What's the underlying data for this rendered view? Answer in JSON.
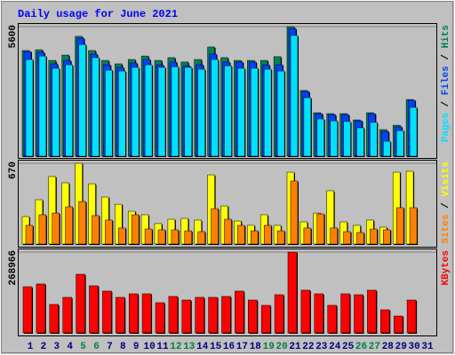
{
  "chart_data": [
    {
      "type": "bar",
      "title": "Daily usage for June 2021",
      "ylim": [
        0,
        5600
      ],
      "yticks": [
        5600
      ],
      "legend_separator": " / ",
      "series": [
        {
          "name": "Hits",
          "color": "#00805c",
          "values": [
            4565,
            4600,
            4140,
            4370,
            5180,
            4565,
            4140,
            3990,
            4180,
            4330,
            4140,
            4260,
            4070,
            4180,
            4720,
            4260,
            4140,
            4140,
            4140,
            4300,
            5600,
            2840,
            1880,
            1840,
            1840,
            1570,
            1880,
            1150,
            1340,
            2450,
            null
          ]
        },
        {
          "name": "Files",
          "color": "#0040ff",
          "values": [
            4525,
            4490,
            3990,
            4140,
            5100,
            4410,
            3950,
            3840,
            4030,
            4180,
            3950,
            4070,
            3910,
            3950,
            4410,
            4070,
            4070,
            4070,
            3950,
            3950,
            5520,
            2800,
            1840,
            1800,
            1800,
            1530,
            1840,
            1070,
            1270,
            2420,
            null
          ]
        },
        {
          "name": "Pages",
          "color": "#00e0ff",
          "values": [
            4180,
            4330,
            3800,
            3950,
            4830,
            4260,
            3720,
            3680,
            3840,
            3950,
            3840,
            3870,
            3840,
            3760,
            4180,
            3910,
            3800,
            3800,
            3760,
            3680,
            5220,
            2530,
            1610,
            1530,
            1500,
            1230,
            1460,
            650,
            1110,
            2110,
            null
          ]
        }
      ]
    },
    {
      "type": "bar",
      "ylim": [
        0,
        670
      ],
      "yticks": [
        670
      ],
      "legend_separator": " / ",
      "series": [
        {
          "name": "Visits",
          "color": "#ffff00",
          "values": [
            228,
            368,
            560,
            508,
            670,
            500,
            390,
            330,
            272,
            243,
            170,
            206,
            213,
            199,
            574,
            316,
            191,
            155,
            243,
            155,
            596,
            184,
            257,
            442,
            184,
            155,
            199,
            140,
            596,
            604,
            null
          ]
        },
        {
          "name": "Sites",
          "color": "#ff8000",
          "values": [
            155,
            243,
            257,
            309,
            353,
            236,
            199,
            133,
            243,
            125,
            118,
            118,
            110,
            103,
            294,
            206,
            155,
            110,
            155,
            110,
            523,
            133,
            250,
            133,
            103,
            96,
            125,
            118,
            302,
            302,
            null
          ]
        }
      ]
    },
    {
      "type": "bar",
      "ylim": [
        0,
        268966
      ],
      "yticks": [
        268966
      ],
      "categories": [
        "1",
        "2",
        "3",
        "4",
        "5",
        "6",
        "7",
        "8",
        "9",
        "10",
        "11",
        "12",
        "13",
        "14",
        "15",
        "16",
        "17",
        "18",
        "19",
        "20",
        "21",
        "22",
        "23",
        "24",
        "25",
        "26",
        "27",
        "28",
        "29",
        "30",
        "31"
      ],
      "category_colors": [
        "#000080",
        "#000080",
        "#000080",
        "#000080",
        "#008040",
        "#008040",
        "#000080",
        "#000080",
        "#000080",
        "#000080",
        "#000080",
        "#008040",
        "#008040",
        "#000080",
        "#000080",
        "#000080",
        "#000080",
        "#000080",
        "#008040",
        "#008040",
        "#000080",
        "#000080",
        "#000080",
        "#000080",
        "#000080",
        "#008040",
        "#008040",
        "#000080",
        "#000080",
        "#000080",
        "#000080"
      ],
      "series": [
        {
          "name": "KBytes",
          "color": "#ff0000",
          "values": [
            153700,
            162600,
            94600,
            118200,
            195000,
            156700,
            139000,
            118200,
            130000,
            130000,
            100500,
            121200,
            109300,
            118200,
            118200,
            121200,
            139000,
            109300,
            91600,
            127000,
            268966,
            142000,
            130000,
            91600,
            130000,
            127000,
            142000,
            76800,
            56100,
            109300,
            null
          ]
        }
      ]
    }
  ]
}
